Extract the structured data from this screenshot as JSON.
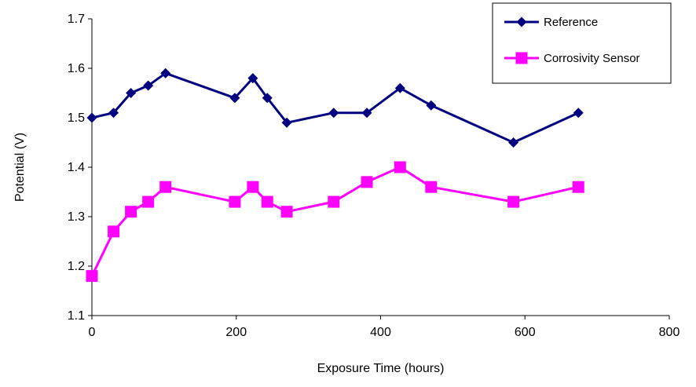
{
  "chart_data": {
    "type": "line",
    "xlabel": "Exposure Time (hours)",
    "ylabel": "Potential (V)",
    "xlim": [
      0,
      800
    ],
    "ylim": [
      1.1,
      1.7
    ],
    "xticks": [
      "0",
      "200",
      "400",
      "600",
      "800"
    ],
    "yticks": [
      "1.1",
      "1.2",
      "1.3",
      "1.4",
      "1.5",
      "1.6",
      "1.7"
    ],
    "grid": false,
    "legend_position": "top-right",
    "series": [
      {
        "name": "Reference",
        "color": "#000080",
        "marker": "diamond",
        "x": [
          0,
          30,
          54,
          78,
          102,
          198,
          223,
          243,
          270,
          335,
          381,
          427,
          470,
          584,
          674
        ],
        "y": [
          1.5,
          1.51,
          1.55,
          1.565,
          1.59,
          1.54,
          1.58,
          1.54,
          1.49,
          1.51,
          1.51,
          1.56,
          1.525,
          1.45,
          1.51
        ]
      },
      {
        "name": "Corrosivity Sensor",
        "color": "#ff00ff",
        "marker": "square",
        "x": [
          0,
          30,
          54,
          78,
          102,
          198,
          223,
          243,
          270,
          335,
          381,
          427,
          470,
          584,
          674
        ],
        "y": [
          1.18,
          1.27,
          1.31,
          1.33,
          1.36,
          1.33,
          1.36,
          1.33,
          1.31,
          1.33,
          1.37,
          1.4,
          1.36,
          1.33,
          1.36
        ]
      }
    ]
  }
}
